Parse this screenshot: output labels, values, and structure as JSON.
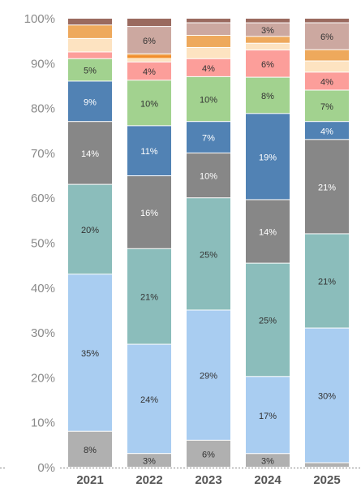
{
  "chart_data": {
    "type": "bar",
    "stacked": true,
    "normalized": true,
    "categories": [
      "2021",
      "2022",
      "2023",
      "2024",
      "2025"
    ],
    "ylim": [
      0,
      100
    ],
    "yticks": [
      "0%",
      "10%",
      "20%",
      "30%",
      "40%",
      "50%",
      "60%",
      "70%",
      "80%",
      "90%",
      "100%"
    ],
    "grid": false,
    "legend": "none",
    "series": [
      {
        "values": [
          8,
          3,
          6,
          3,
          1
        ],
        "color": "#b0b0b0",
        "text_color": "#333333"
      },
      {
        "values": [
          35,
          24,
          29,
          17,
          30
        ],
        "color": "#a9cdf1",
        "text_color": "#333333"
      },
      {
        "values": [
          20,
          21,
          25,
          25,
          21
        ],
        "color": "#8bbdbb",
        "text_color": "#333333"
      },
      {
        "values": [
          14,
          16,
          10,
          14,
          21
        ],
        "color": "#878787",
        "text_color": "#ffffff"
      },
      {
        "values": [
          9,
          11,
          7,
          19,
          4
        ],
        "color": "#5182b4",
        "text_color": "#ffffff"
      },
      {
        "values": [
          5,
          10,
          10,
          8,
          7
        ],
        "color": "#a2d28f",
        "text_color": "#333333"
      },
      {
        "values": [
          1.5,
          4,
          4,
          6,
          4
        ],
        "color": "#fc9e9a",
        "text_color": "#333333"
      },
      {
        "values": [
          3,
          1,
          2.5,
          1.5,
          2.5
        ],
        "color": "#fde3c1",
        "text_color": "#333333"
      },
      {
        "values": [
          3,
          0.8,
          2.7,
          1.5,
          2.5
        ],
        "color": "#eea95c",
        "text_color": "#333333"
      },
      {
        "values": [
          0,
          6,
          2.8,
          3,
          6
        ],
        "color": "#cca8a0",
        "text_color": "#333333"
      },
      {
        "values": [
          1.5,
          1.8,
          1,
          1,
          1
        ],
        "color": "#9a6a5f",
        "text_color": "#ffffff"
      }
    ],
    "segment_labels": [
      [
        "8%",
        "3%",
        "6%",
        "3%",
        ""
      ],
      [
        "35%",
        "24%",
        "29%",
        "17%",
        "30%"
      ],
      [
        "20%",
        "21%",
        "25%",
        "25%",
        "21%"
      ],
      [
        "14%",
        "16%",
        "10%",
        "14%",
        "21%"
      ],
      [
        "9%",
        "11%",
        "7%",
        "19%",
        "4%"
      ],
      [
        "5%",
        "10%",
        "10%",
        "8%",
        "7%"
      ],
      [
        "",
        "4%",
        "4%",
        "6%",
        "4%"
      ],
      [
        "",
        "",
        "",
        "",
        ""
      ],
      [
        "",
        "",
        "",
        "",
        ""
      ],
      [
        "",
        "6%",
        "",
        "3%",
        "6%"
      ],
      [
        "",
        "",
        "",
        "",
        ""
      ]
    ],
    "extra_mark_color": "#f28e2b"
  }
}
